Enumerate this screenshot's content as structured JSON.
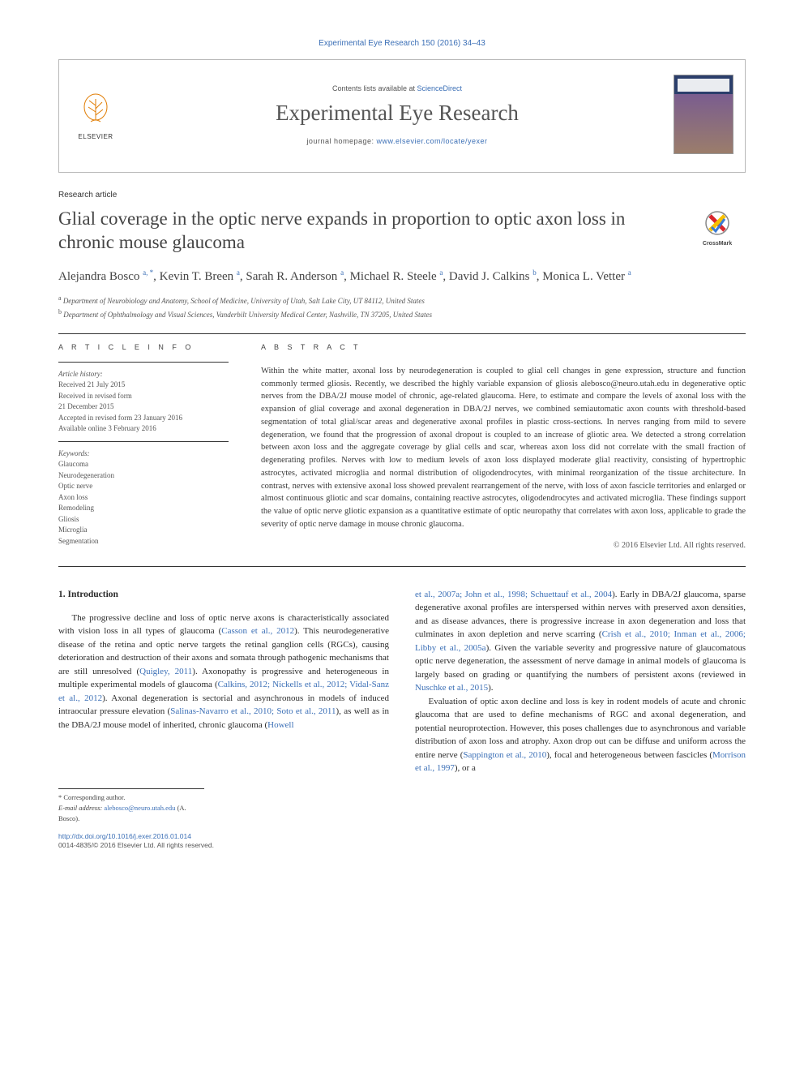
{
  "citation": "Experimental Eye Research 150 (2016) 34–43",
  "header": {
    "contents_prefix": "Contents lists available at ",
    "contents_link": "ScienceDirect",
    "journal": "Experimental Eye Research",
    "homepage_prefix": "journal homepage: ",
    "homepage_url": "www.elsevier.com/locate/yexer",
    "publisher": "ELSEVIER"
  },
  "article_type": "Research article",
  "title": "Glial coverage in the optic nerve expands in proportion to optic axon loss in chronic mouse glaucoma",
  "crossmark": "CrossMark",
  "authors_html": "Alejandra Bosco <sup>a, *</sup>, Kevin T. Breen <sup>a</sup>, Sarah R. Anderson <sup>a</sup>, Michael R. Steele <sup>a</sup>, David J. Calkins <sup>b</sup>, Monica L. Vetter <sup>a</sup>",
  "affiliations": {
    "a": "Department of Neurobiology and Anatomy, School of Medicine, University of Utah, Salt Lake City, UT 84112, United States",
    "b": "Department of Ophthalmology and Visual Sciences, Vanderbilt University Medical Center, Nashville, TN 37205, United States"
  },
  "info": {
    "header": "A R T I C L E   I N F O",
    "history_label": "Article history:",
    "history": [
      "Received 21 July 2015",
      "Received in revised form",
      "21 December 2015",
      "Accepted in revised form 23 January 2016",
      "Available online 3 February 2016"
    ],
    "keywords_label": "Keywords:",
    "keywords": [
      "Glaucoma",
      "Neurodegeneration",
      "Optic nerve",
      "Axon loss",
      "Remodeling",
      "Gliosis",
      "Microglia",
      "Segmentation"
    ]
  },
  "abstract": {
    "header": "A B S T R A C T",
    "text": "Within the white matter, axonal loss by neurodegeneration is coupled to glial cell changes in gene expression, structure and function commonly termed gliosis. Recently, we described the highly variable expansion of gliosis alebosco@neuro.utah.edu in degenerative optic nerves from the DBA/2J mouse model of chronic, age-related glaucoma. Here, to estimate and compare the levels of axonal loss with the expansion of glial coverage and axonal degeneration in DBA/2J nerves, we combined semiautomatic axon counts with threshold-based segmentation of total glial/scar areas and degenerative axonal profiles in plastic cross-sections. In nerves ranging from mild to severe degeneration, we found that the progression of axonal dropout is coupled to an increase of gliotic area. We detected a strong correlation between axon loss and the aggregate coverage by glial cells and scar, whereas axon loss did not correlate with the small fraction of degenerating profiles. Nerves with low to medium levels of axon loss displayed moderate glial reactivity, consisting of hypertrophic astrocytes, activated microglia and normal distribution of oligodendrocytes, with minimal reorganization of the tissue architecture. In contrast, nerves with extensive axonal loss showed prevalent rearrangement of the nerve, with loss of axon fascicle territories and enlarged or almost continuous gliotic and scar domains, containing reactive astrocytes, oligodendrocytes and activated microglia. These findings support the value of optic nerve gliotic expansion as a quantitative estimate of optic neuropathy that correlates with axon loss, applicable to grade the severity of optic nerve damage in mouse chronic glaucoma.",
    "copyright": "© 2016 Elsevier Ltd. All rights reserved."
  },
  "intro": {
    "heading": "1. Introduction",
    "col1_p1a": "The progressive decline and loss of optic nerve axons is characteristically associated with vision loss in all types of glaucoma (",
    "col1_c1": "Casson et al., 2012",
    "col1_p1b": "). This neurodegenerative disease of the retina and optic nerve targets the retinal ganglion cells (RGCs), causing deterioration and destruction of their axons and somata through pathogenic mechanisms that are still unresolved (",
    "col1_c2": "Quigley, 2011",
    "col1_p1c": "). Axonopathy is progressive and heterogeneous in multiple experimental models of glaucoma (",
    "col1_c3": "Calkins, 2012; Nickells et al., 2012; Vidal-Sanz et al., 2012",
    "col1_p1d": "). Axonal degeneration is sectorial and asynchronous in models of induced intraocular pressure elevation (",
    "col1_c4": "Salinas-Navarro et al., 2010; Soto et al., 2011",
    "col1_p1e": "), as well as in the DBA/2J mouse model of inherited, chronic glaucoma (",
    "col1_c5": "Howell",
    "col2_c1": "et al., 2007a; John et al., 1998; Schuettauf et al., 2004",
    "col2_p1a": "). Early in DBA/2J glaucoma, sparse degenerative axonal profiles are interspersed within nerves with preserved axon densities, and as disease advances, there is progressive increase in axon degeneration and loss that culminates in axon depletion and nerve scarring (",
    "col2_c2": "Crish et al., 2010; Inman et al., 2006; Libby et al., 2005a",
    "col2_p1b": "). Given the variable severity and progressive nature of glaucomatous optic nerve degeneration, the assessment of nerve damage in animal models of glaucoma is largely based on grading or quantifying the numbers of persistent axons (reviewed in ",
    "col2_c3": "Nuschke et al., 2015",
    "col2_p1c": ").",
    "col2_p2a": "Evaluation of optic axon decline and loss is key in rodent models of acute and chronic glaucoma that are used to define mechanisms of RGC and axonal degeneration, and potential neuroprotection. However, this poses challenges due to asynchronous and variable distribution of axon loss and atrophy. Axon drop out can be diffuse and uniform across the entire nerve (",
    "col2_c4": "Sappington et al., 2010",
    "col2_p2b": "), focal and heterogeneous between fascicles (",
    "col2_c5": "Morrison et al., 1997",
    "col2_p2c": "), or a"
  },
  "footnote": {
    "corr": "* Corresponding author.",
    "email_label": "E-mail address:",
    "email": "alebosco@neuro.utah.edu",
    "email_name": "(A. Bosco)."
  },
  "footer": {
    "doi": "http://dx.doi.org/10.1016/j.exer.2016.01.014",
    "issn": "0014-4835/© 2016 Elsevier Ltd. All rights reserved."
  },
  "colors": {
    "link": "#3b6fb6",
    "text": "#2b2b2b",
    "muted": "#555555",
    "rule": "#333333"
  }
}
